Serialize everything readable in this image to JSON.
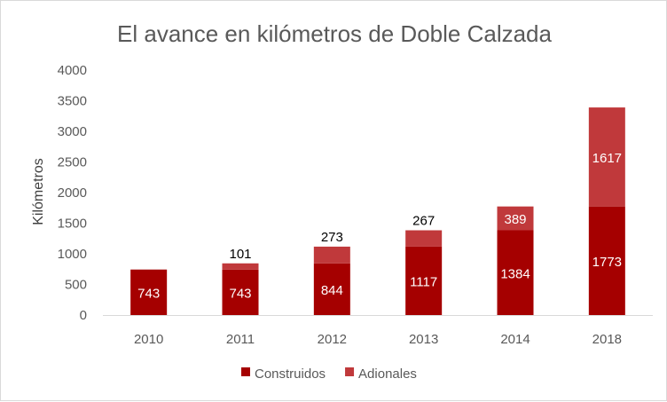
{
  "chart_data": {
    "type": "bar",
    "stacked": true,
    "title": "El avance en kilómetros de Doble Calzada",
    "xlabel": "",
    "ylabel": "Kilómetros",
    "ylim": [
      0,
      4000
    ],
    "yticks": [
      0,
      500,
      1000,
      1500,
      2000,
      2500,
      3000,
      3500,
      4000
    ],
    "categories": [
      "2010",
      "2011",
      "2012",
      "2013",
      "2014",
      "2018"
    ],
    "series": [
      {
        "name": "Construidos",
        "color": "#a50000",
        "values": [
          743,
          743,
          844,
          1117,
          1384,
          1773
        ],
        "labels": [
          "743",
          "743",
          "844",
          "1117",
          "1384",
          "1773"
        ]
      },
      {
        "name": "Adionales",
        "color": "#c0393b",
        "values": [
          0,
          101,
          273,
          267,
          389,
          1617
        ],
        "labels": [
          "",
          "101",
          "273",
          "267",
          "389",
          "1617"
        ]
      }
    ],
    "legend_position": "bottom",
    "grid": false
  }
}
